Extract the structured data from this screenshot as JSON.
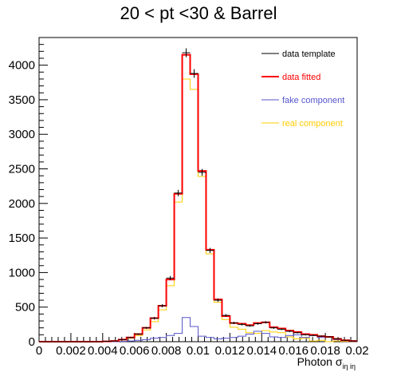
{
  "chart_data": {
    "type": "line",
    "title": "20 < pt <30 & Barrel",
    "xlabel": "Photon σ",
    "xlabel_sub": "iη iη",
    "ylabel": "",
    "xlim": [
      0,
      0.02
    ],
    "ylim": [
      0,
      4400
    ],
    "x_ticks": [
      {
        "value": 0,
        "label": "0"
      },
      {
        "value": 0.002,
        "label": "0.002"
      },
      {
        "value": 0.004,
        "label": "0.004"
      },
      {
        "value": 0.006,
        "label": "0.006"
      },
      {
        "value": 0.008,
        "label": "0.008"
      },
      {
        "value": 0.01,
        "label": "0.01"
      },
      {
        "value": 0.012,
        "label": "0.012"
      },
      {
        "value": 0.014,
        "label": "0.014"
      },
      {
        "value": 0.016,
        "label": "0.016"
      },
      {
        "value": 0.018,
        "label": "0.018"
      },
      {
        "value": 0.02,
        "label": "0.02"
      }
    ],
    "y_ticks": [
      {
        "value": 0,
        "label": "0"
      },
      {
        "value": 500,
        "label": "500"
      },
      {
        "value": 1000,
        "label": "1000"
      },
      {
        "value": 1500,
        "label": "1500"
      },
      {
        "value": 2000,
        "label": "2000"
      },
      {
        "value": 2500,
        "label": "2500"
      },
      {
        "value": 3000,
        "label": "3000"
      },
      {
        "value": 3500,
        "label": "3500"
      },
      {
        "value": 4000,
        "label": "4000"
      }
    ],
    "bin_edges": [
      0,
      0.0005,
      0.001,
      0.0015,
      0.002,
      0.0025,
      0.003,
      0.0035,
      0.004,
      0.0045,
      0.005,
      0.0055,
      0.006,
      0.0065,
      0.007,
      0.0075,
      0.008,
      0.0085,
      0.009,
      0.0095,
      0.01,
      0.0105,
      0.011,
      0.0115,
      0.012,
      0.0125,
      0.013,
      0.0135,
      0.014,
      0.0145,
      0.015,
      0.0155,
      0.016,
      0.0165,
      0.017,
      0.0175,
      0.018,
      0.0185,
      0.019,
      0.0195,
      0.02
    ],
    "series": [
      {
        "name": "data template",
        "color": "#000000",
        "style": "points",
        "values": [
          0,
          0,
          0,
          0,
          0,
          0,
          0,
          0,
          5,
          10,
          30,
          60,
          110,
          200,
          340,
          520,
          920,
          2150,
          4180,
          3880,
          2450,
          1320,
          600,
          380,
          270,
          250,
          230,
          260,
          280,
          200,
          180,
          150,
          130,
          100,
          90,
          80,
          70,
          40,
          20,
          10
        ]
      },
      {
        "name": "data fitted",
        "color": "#ff0000",
        "style": "step",
        "values": [
          0,
          0,
          0,
          0,
          0,
          0,
          0,
          0,
          5,
          10,
          30,
          60,
          110,
          200,
          340,
          520,
          900,
          2140,
          4150,
          3870,
          2470,
          1330,
          610,
          370,
          270,
          260,
          240,
          270,
          280,
          210,
          190,
          160,
          140,
          110,
          100,
          80,
          70,
          40,
          20,
          10
        ]
      },
      {
        "name": "fake component",
        "color": "#5555cc",
        "style": "step",
        "values": [
          0,
          0,
          0,
          0,
          0,
          0,
          0,
          0,
          0,
          0,
          5,
          10,
          20,
          30,
          50,
          60,
          90,
          120,
          350,
          220,
          80,
          60,
          40,
          50,
          60,
          80,
          110,
          150,
          120,
          70,
          60,
          90,
          100,
          60,
          90,
          60,
          70,
          30,
          15,
          5
        ]
      },
      {
        "name": "real component",
        "color": "#ffcc00",
        "style": "step",
        "values": [
          0,
          0,
          0,
          0,
          0,
          0,
          0,
          0,
          5,
          10,
          25,
          50,
          90,
          170,
          290,
          460,
          810,
          2020,
          3800,
          3650,
          2390,
          1270,
          570,
          320,
          210,
          180,
          130,
          120,
          160,
          140,
          130,
          70,
          40,
          50,
          10,
          20,
          0,
          10,
          5,
          5
        ]
      }
    ]
  }
}
